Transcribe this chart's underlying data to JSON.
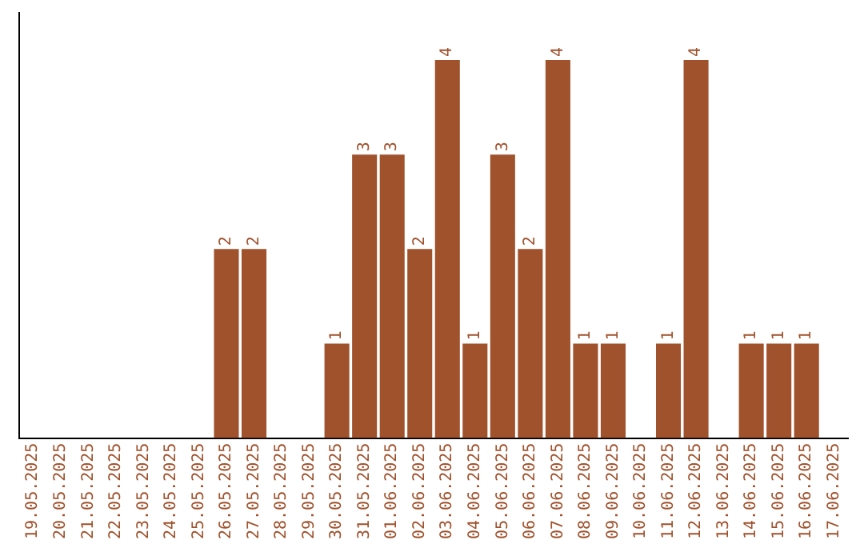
{
  "chart_data": {
    "type": "bar",
    "categories": [
      "19.05.2025",
      "20.05.2025",
      "21.05.2025",
      "22.05.2025",
      "23.05.2025",
      "24.05.2025",
      "25.05.2025",
      "26.05.2025",
      "27.05.2025",
      "28.05.2025",
      "29.05.2025",
      "30.05.2025",
      "31.05.2025",
      "01.06.2025",
      "02.06.2025",
      "03.06.2025",
      "04.06.2025",
      "05.06.2025",
      "06.06.2025",
      "07.06.2025",
      "08.06.2025",
      "09.06.2025",
      "10.06.2025",
      "11.06.2025",
      "12.06.2025",
      "13.06.2025",
      "14.06.2025",
      "15.06.2025",
      "16.06.2025",
      "17.06.2025"
    ],
    "values": [
      0,
      0,
      0,
      0,
      0,
      0,
      0,
      2,
      2,
      0,
      0,
      1,
      3,
      3,
      2,
      4,
      1,
      3,
      2,
      4,
      1,
      1,
      0,
      1,
      4,
      0,
      1,
      1,
      1,
      0
    ],
    "value_labels": [
      null,
      null,
      null,
      null,
      null,
      null,
      null,
      "2",
      "2",
      null,
      null,
      "1",
      "3",
      "3",
      "2",
      "4",
      "1",
      "3",
      "2",
      "4",
      "1",
      "1",
      null,
      "1",
      "4",
      null,
      "1",
      "1",
      "1",
      null
    ],
    "color": "#a0522d",
    "grid": false,
    "legend": false,
    "tick_labels": "x"
  }
}
